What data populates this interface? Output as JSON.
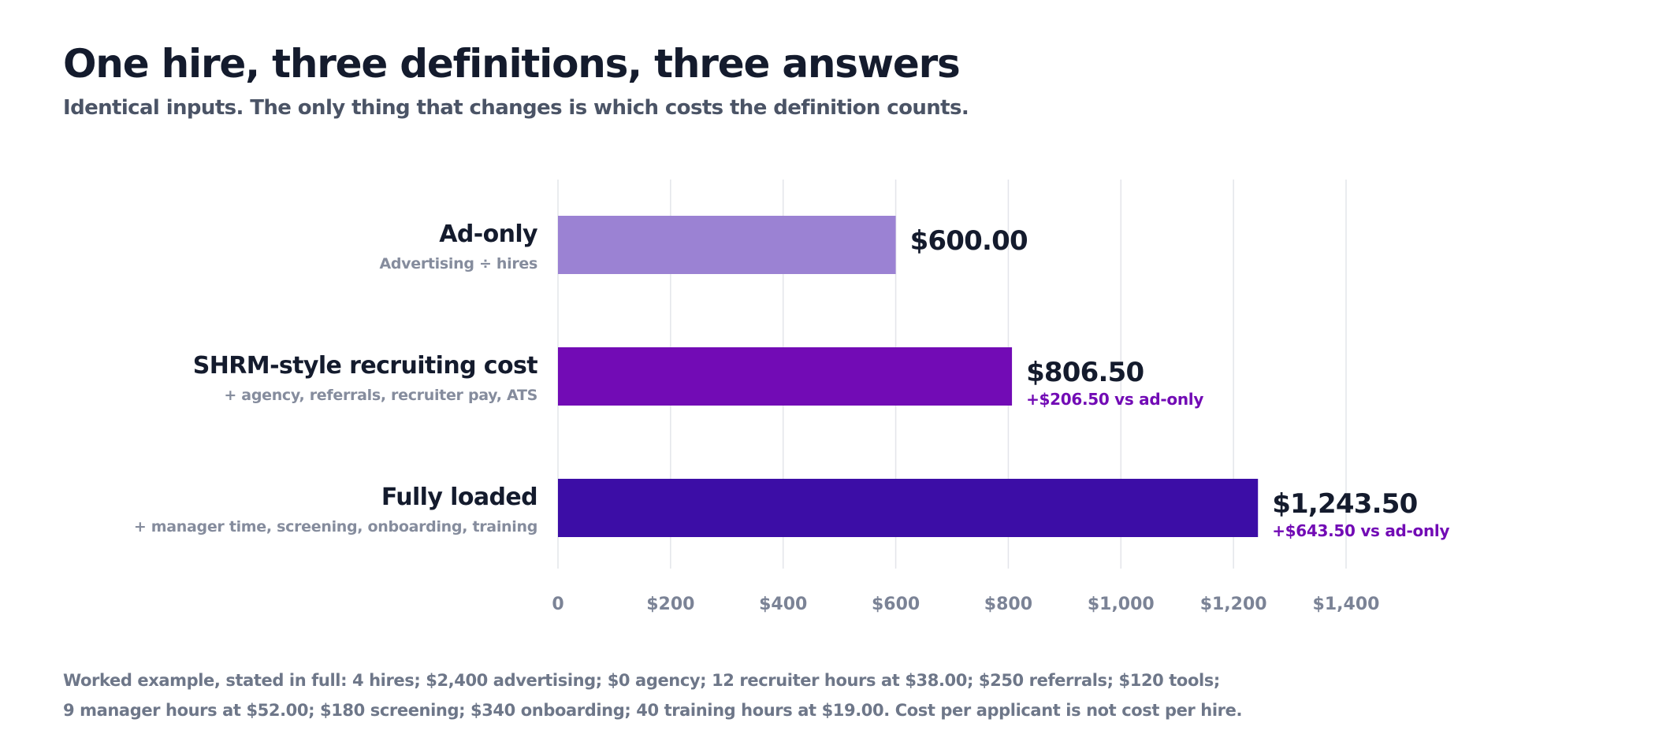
{
  "header": {
    "title": "One hire, three definitions, three answers",
    "subtitle": "Identical inputs. The only thing that changes is which costs the definition counts."
  },
  "chart_data": {
    "type": "bar",
    "orientation": "horizontal",
    "categories": [
      "Ad-only",
      "SHRM-style recruiting cost",
      "Fully loaded"
    ],
    "category_sublabels": [
      "Advertising ÷ hires",
      "+ agency, referrals, recruiter pay, ATS",
      "+ manager time, screening, onboarding, training"
    ],
    "values": [
      600.0,
      806.5,
      1243.5
    ],
    "value_labels": [
      "$600.00",
      "$806.50",
      "$1,243.50"
    ],
    "delta_labels": [
      "",
      "+$206.50 vs ad-only",
      "+$643.50 vs ad-only"
    ],
    "bar_colors": [
      "#9b82d3",
      "#720bb5",
      "#3c0da6"
    ],
    "delta_color": "#720bb5",
    "xlim": [
      0,
      1400
    ],
    "x_ticks": [
      0,
      200,
      400,
      600,
      800,
      1000,
      1200,
      1400
    ],
    "x_tick_labels": [
      "0",
      "$200",
      "$400",
      "$600",
      "$800",
      "$1,000",
      "$1,200",
      "$1,400"
    ],
    "grid": true,
    "title": "",
    "xlabel": "",
    "ylabel": ""
  },
  "footnote": {
    "line1": "Worked example, stated in full: 4 hires; $2,400 advertising; $0 agency; 12 recruiter hours at $38.00; $250 referrals; $120 tools;",
    "line2": "9 manager hours at $52.00; $180 screening; $340 onboarding; 40 training hours at $19.00. Cost per applicant is not cost per hire."
  }
}
